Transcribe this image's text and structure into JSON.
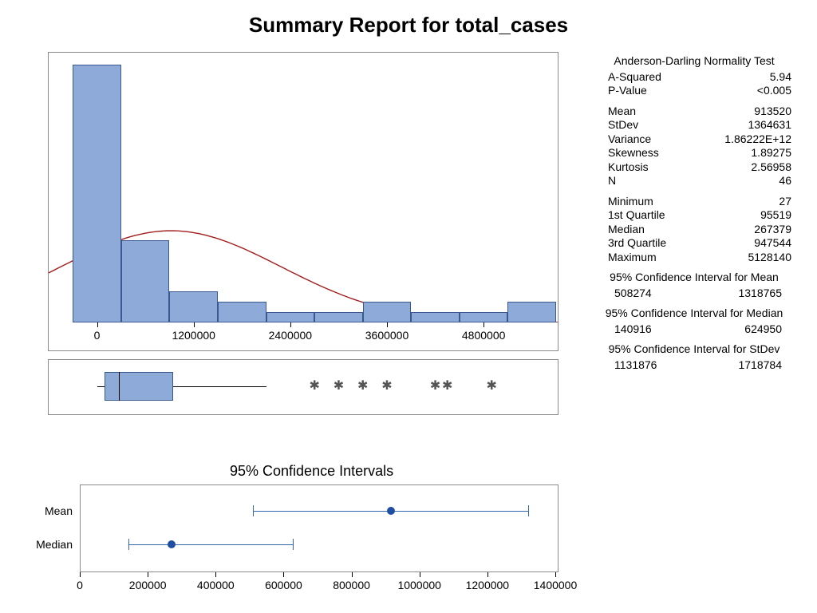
{
  "title": "Summary Report for total_cases",
  "colors": {
    "bar_fill": "#8eaad8",
    "bar_border": "#3a5a8f",
    "curve": "#a11e1e",
    "panel_border": "#8a8a8a",
    "ci_line": "#3367b0",
    "ci_dot": "#1f4fa1",
    "background": "#ffffff",
    "text": "#000000",
    "outlier": "#555555"
  },
  "histogram": {
    "type": "histogram",
    "x_range": [
      -600000,
      5700000
    ],
    "x_ticks": [
      0,
      1200000,
      2400000,
      3600000,
      4800000
    ],
    "x_tick_labels": [
      "0",
      "1200000",
      "2400000",
      "3600000",
      "4800000"
    ],
    "bin_width": 600000,
    "bins_start": -300000,
    "counts": [
      25,
      8,
      3,
      2,
      1,
      1,
      2,
      1,
      1,
      2
    ],
    "y_max": 26,
    "curve_mean": 913520,
    "curve_stdev": 1364631,
    "curve_scale": 0.34,
    "bar_fill": "#8eaad8",
    "bar_border": "#3a5a8f",
    "curve_color": "#a11e1e",
    "label_fontsize": 14
  },
  "boxplot": {
    "type": "boxplot",
    "x_range": [
      -600000,
      5700000
    ],
    "q1": 95519,
    "median": 267379,
    "q3": 947544,
    "whisker_low": 27,
    "whisker_high": 2100000,
    "outliers": [
      2700000,
      3000000,
      3300000,
      3600000,
      4200000,
      4350000,
      4900000
    ],
    "box_fill": "#8eaad8",
    "box_border": "#3a5a8f",
    "outlier_glyph": "✱"
  },
  "ci_panel": {
    "title": "95% Confidence Intervals",
    "x_range": [
      0,
      1400000
    ],
    "x_ticks": [
      0,
      200000,
      400000,
      600000,
      800000,
      1000000,
      1200000,
      1400000
    ],
    "x_tick_labels": [
      "0",
      "200000",
      "400000",
      "600000",
      "800000",
      "1000000",
      "1200000",
      "1400000"
    ],
    "rows": [
      {
        "label": "Mean",
        "low": 508274,
        "point": 913520,
        "high": 1318765
      },
      {
        "label": "Median",
        "low": 140916,
        "point": 267379,
        "high": 624950
      }
    ],
    "line_color": "#3367b0",
    "dot_color": "#1f4fa1",
    "label_fontsize": 14
  },
  "stats": {
    "label_fontsize": 14,
    "sections": [
      {
        "header": "Anderson-Darling Normality Test",
        "rows": [
          [
            "A-Squared",
            "5.94"
          ],
          [
            "P-Value",
            "<0.005"
          ]
        ]
      },
      {
        "rows": [
          [
            "Mean",
            "913520"
          ],
          [
            "StDev",
            "1364631"
          ],
          [
            "Variance",
            "1.86222E+12"
          ],
          [
            "Skewness",
            "1.89275"
          ],
          [
            "Kurtosis",
            "2.56958"
          ],
          [
            "N",
            "46"
          ]
        ]
      },
      {
        "rows": [
          [
            "Minimum",
            "27"
          ],
          [
            "1st Quartile",
            "95519"
          ],
          [
            "Median",
            "267379"
          ],
          [
            "3rd Quartile",
            "947544"
          ],
          [
            "Maximum",
            "5128140"
          ]
        ]
      },
      {
        "header": "95% Confidence Interval for Mean",
        "pair": [
          "508274",
          "1318765"
        ]
      },
      {
        "header": "95% Confidence Interval for Median",
        "pair": [
          "140916",
          "624950"
        ]
      },
      {
        "header": "95% Confidence Interval for StDev",
        "pair": [
          "1131876",
          "1718784"
        ]
      }
    ]
  }
}
